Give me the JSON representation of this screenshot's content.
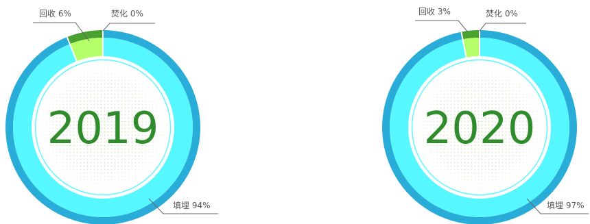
{
  "chart_data": [
    {
      "type": "pie",
      "title": "2019",
      "categories": [
        "填埋",
        "回收",
        "焚化"
      ],
      "values": [
        94,
        6,
        0
      ],
      "labels": [
        "填埋 94%",
        "回收 6%",
        "焚化 0%"
      ]
    },
    {
      "type": "pie",
      "title": "2020",
      "categories": [
        "填埋",
        "回收",
        "焚化"
      ],
      "values": [
        97,
        3,
        0
      ],
      "labels": [
        "填埋 97%",
        "回收 3%",
        "焚化 0%"
      ]
    }
  ],
  "colors": {
    "landfill_outer": "#2aacd9",
    "landfill_inner": "#57f7ff",
    "recycle_outer": "#49a22f",
    "recycle_inner": "#b4ff6a",
    "year_text": "#2f8b2b",
    "leader_line": "#666666"
  }
}
